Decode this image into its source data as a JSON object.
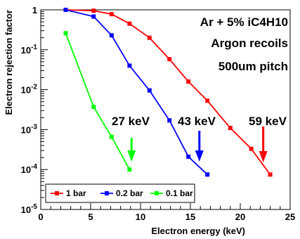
{
  "chart_data": {
    "type": "line",
    "xlabel": "Electron energy (keV)",
    "ylabel": "Electron rejection factor",
    "xlim": [
      0,
      25
    ],
    "ylim": [
      1e-05,
      1
    ],
    "yscale": "log",
    "x_ticks": [
      0,
      5,
      10,
      15,
      20,
      25
    ],
    "x_tick_labels": [
      "0",
      "5",
      "10",
      "15",
      "20",
      "25"
    ],
    "y_ticks": [
      1,
      0.1,
      0.01,
      0.001,
      0.0001,
      1e-05
    ],
    "y_tick_labels": [
      {
        "base": "1",
        "exp": ""
      },
      {
        "base": "10",
        "exp": "-1"
      },
      {
        "base": "10",
        "exp": "-2"
      },
      {
        "base": "10",
        "exp": "-3"
      },
      {
        "base": "10",
        "exp": "-4"
      },
      {
        "base": "10",
        "exp": "-5"
      }
    ],
    "legend_position": "bottom-left",
    "series": [
      {
        "name": "1 bar",
        "color": "#ff0000",
        "x": [
          2.5,
          5.3,
          7.1,
          8.9,
          10.9,
          12.9,
          14.8,
          16.7,
          19.0,
          21.1,
          23.0
        ],
        "y": [
          1.0,
          0.95,
          0.78,
          0.45,
          0.2,
          0.058,
          0.016,
          0.0053,
          0.0011,
          0.00033,
          7.5e-05
        ]
      },
      {
        "name": "0.2 bar",
        "color": "#0000ff",
        "x": [
          2.5,
          5.3,
          7.1,
          8.9,
          10.9,
          12.9,
          14.8,
          16.7
        ],
        "y": [
          1.0,
          0.68,
          0.23,
          0.04,
          0.0096,
          0.0017,
          0.00021,
          7.5e-05
        ]
      },
      {
        "name": "0.1 bar",
        "color": "#00ff00",
        "x": [
          2.5,
          5.3,
          7.1,
          8.9
        ],
        "y": [
          0.26,
          0.0037,
          0.00066,
          0.0001
        ]
      }
    ],
    "annotations": [
      {
        "text": "Ar + 5% iC4H10"
      },
      {
        "text": "Argon recoils"
      },
      {
        "text": "500um pitch"
      }
    ],
    "arrows": [
      {
        "label": "27 keV",
        "x": 9.1,
        "color": "#00ff00"
      },
      {
        "label": "43 keV",
        "x": 15.9,
        "color": "#0000ff"
      },
      {
        "label": "59 keV",
        "x": 22.3,
        "color": "#ff0000"
      }
    ]
  }
}
